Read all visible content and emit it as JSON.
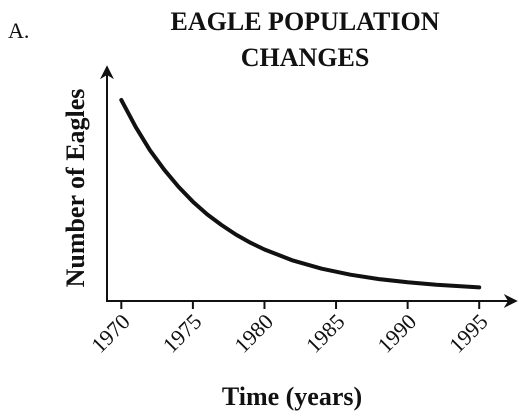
{
  "chart_data": {
    "type": "line",
    "annotation": "A.",
    "title": [
      "EAGLE POPULATION",
      "CHANGES"
    ],
    "xlabel": "Time (years)",
    "ylabel": "Number of Eagles",
    "x": [
      1970,
      1971,
      1972,
      1973,
      1974,
      1975,
      1976,
      1977,
      1978,
      1979,
      1980,
      1982,
      1984,
      1986,
      1988,
      1990,
      1992,
      1995
    ],
    "series": [
      {
        "color": "#111111",
        "values": [
          87,
          75.4,
          65.3,
          56.8,
          49.4,
          43,
          37.5,
          32.9,
          28.8,
          25.3,
          22.3,
          17.5,
          14,
          11.4,
          9.5,
          8.1,
          7,
          5.9
        ]
      }
    ],
    "xlim": [
      1969,
      1997.5
    ],
    "ylim": [
      0,
      100
    ],
    "xticks": [
      1970,
      1975,
      1980,
      1985,
      1990,
      1995
    ]
  }
}
